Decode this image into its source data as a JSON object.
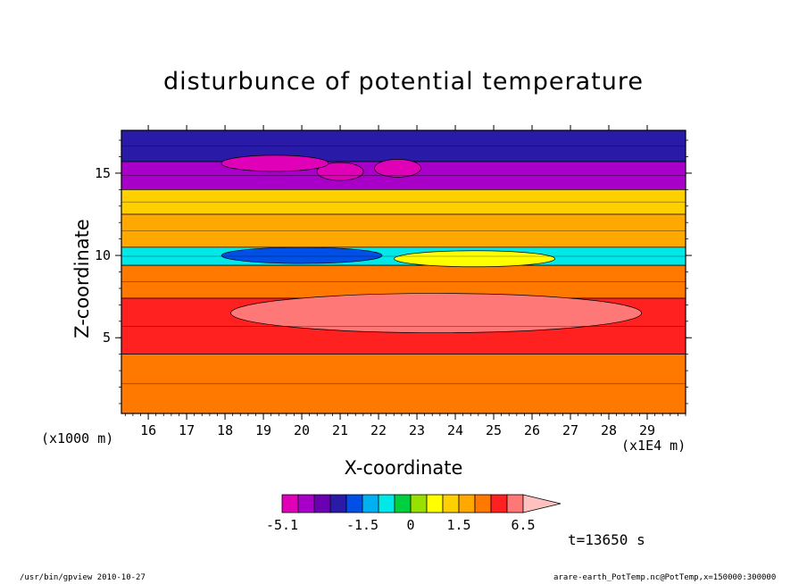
{
  "chart_data": {
    "type": "heatmap",
    "title": "disturbunce of potential temperature",
    "xlabel": "X-coordinate",
    "ylabel": "Z-coordinate",
    "x_unit": "(x1000 m)",
    "x_offset_note": "(x1E4 m)",
    "xlim": [
      15.3,
      30.0
    ],
    "ylim": [
      0.4,
      17.6
    ],
    "x_ticks": [
      "16",
      "17",
      "18",
      "19",
      "20",
      "21",
      "22",
      "23",
      "24",
      "25",
      "26",
      "27",
      "28",
      "29"
    ],
    "y_ticks": [
      "5",
      "10",
      "15"
    ],
    "grid": false,
    "colorbar": {
      "position": "bottom",
      "levels": [
        -5.1,
        -4.1,
        -3.1,
        -2.5,
        -2.0,
        -1.5,
        -1.0,
        -0.5,
        0,
        0.5,
        1.0,
        1.5,
        2.5,
        3.5,
        4.5,
        6.5
      ],
      "tick_labels": [
        "-5.1",
        "-1.5",
        "0",
        "1.5",
        "6.5"
      ],
      "colors": [
        "#e000b8",
        "#a800c8",
        "#6a00b0",
        "#2a1aa8",
        "#0050e8",
        "#00b0f0",
        "#00e8e8",
        "#00d040",
        "#98e000",
        "#ffff00",
        "#ffd000",
        "#ffa800",
        "#ff7800",
        "#ff2020",
        "#ff7878",
        "#ffc0c0"
      ]
    },
    "layers": [
      {
        "z_range": [
          15.7,
          17.6
        ],
        "value": -2.5
      },
      {
        "z_range": [
          14.0,
          15.7
        ],
        "value": -3.5
      },
      {
        "z_range": [
          12.5,
          14.0
        ],
        "value": 1.0
      },
      {
        "z_range": [
          10.5,
          12.5
        ],
        "value": 2.0
      },
      {
        "z_range": [
          9.4,
          10.5
        ],
        "value": -1.0
      },
      {
        "z_range": [
          7.4,
          9.4
        ],
        "value": 2.5
      },
      {
        "z_range": [
          4.0,
          7.4
        ],
        "value": 4.0
      },
      {
        "z_range": [
          0.4,
          4.0
        ],
        "value": 3.0
      }
    ],
    "features": [
      {
        "x": 21.0,
        "z": 15.1,
        "value": -4.8
      },
      {
        "x": 19.3,
        "z": 15.6,
        "value": -4.6
      },
      {
        "x": 22.5,
        "z": 15.3,
        "value": -5.1
      },
      {
        "x": 23.5,
        "z": 6.5,
        "value": 5.5
      },
      {
        "x": 20.0,
        "z": 10.0,
        "value": -2.0
      },
      {
        "x": 24.5,
        "z": 9.8,
        "value": 0.5
      }
    ]
  },
  "labels": {
    "time": "t=13650 s",
    "footer_left": "/usr/bin/gpview  2010-10-27",
    "footer_right": "arare-earth_PotTemp.nc@PotTemp,x=150000:300000"
  }
}
